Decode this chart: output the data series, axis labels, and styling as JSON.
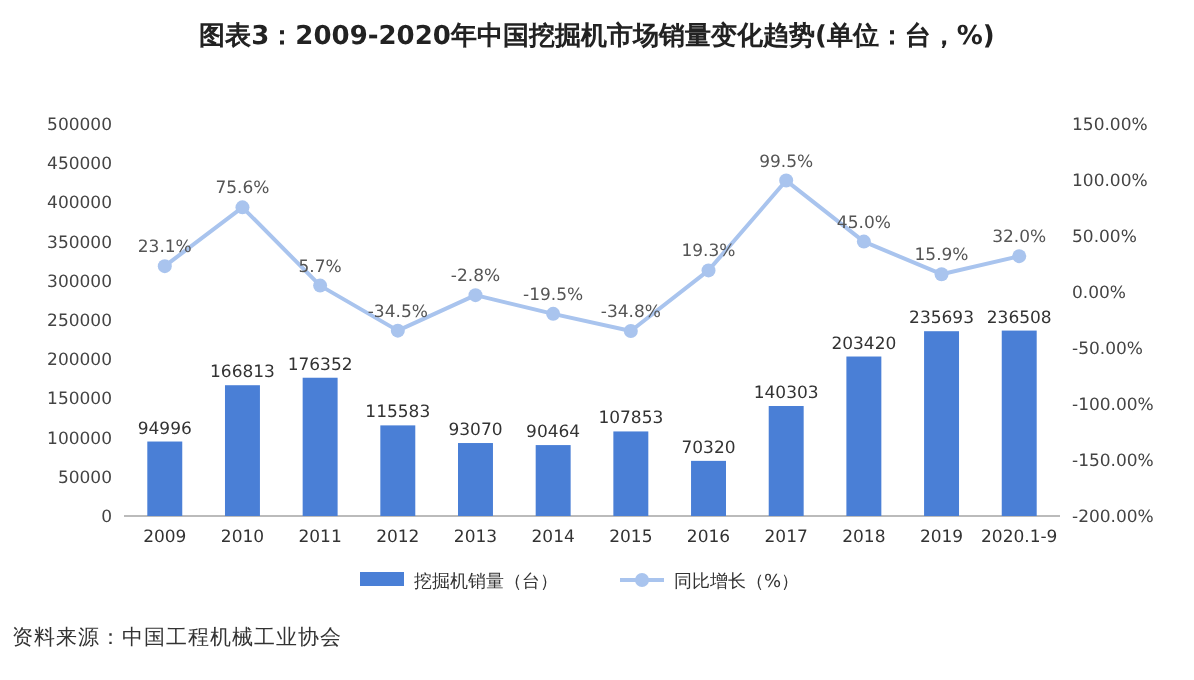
{
  "chart_data": {
    "type": "bar",
    "title": "图表3：2009-2020年中国挖掘机市场销量变化趋势(单位：台，%)",
    "categories": [
      "2009",
      "2010",
      "2011",
      "2012",
      "2013",
      "2014",
      "2015",
      "2016",
      "2017",
      "2018",
      "2019",
      "2020.1-9"
    ],
    "series": [
      {
        "name": "挖掘机销量（台）",
        "color": "#4a7fd6",
        "values": [
          94996,
          166813,
          176352,
          115583,
          93070,
          90464,
          107853,
          70320,
          140303,
          203420,
          235693,
          236508
        ],
        "value_labels": [
          "94996",
          "166813",
          "176352",
          "115583",
          "93070",
          "90464",
          "107853",
          "70320",
          "140303",
          "203420",
          "235693",
          "236508"
        ]
      },
      {
        "name": "同比增长（%）",
        "type": "line",
        "axis": "y2",
        "color": "#a9c4ee",
        "marker": "circle",
        "values": [
          23.1,
          75.6,
          5.7,
          -34.5,
          -2.8,
          -19.5,
          -34.8,
          19.3,
          99.5,
          45.0,
          15.9,
          32.0
        ],
        "value_labels": [
          "23.1%",
          "75.6%",
          "5.7%",
          "-34.5%",
          "-2.8%",
          "-19.5%",
          "-34.8%",
          "19.3%",
          "99.5%",
          "45.0%",
          "15.9%",
          "32.0%"
        ]
      }
    ],
    "ylim": [
      0,
      500000
    ],
    "yticks": [
      0,
      50000,
      100000,
      150000,
      200000,
      250000,
      300000,
      350000,
      400000,
      450000,
      500000
    ],
    "y2lim": [
      -200,
      150
    ],
    "y2ticks": [
      {
        "value": -200,
        "label": "-200.00%"
      },
      {
        "value": -150,
        "label": "-150.00%"
      },
      {
        "value": -100,
        "label": "-100.00%"
      },
      {
        "value": -50,
        "label": "-50.00%"
      },
      {
        "value": 0,
        "label": "0.00%"
      },
      {
        "value": 50,
        "label": "50.00%"
      },
      {
        "value": 100,
        "label": "100.00%"
      },
      {
        "value": 150,
        "label": "150.00%"
      }
    ],
    "legend": "bottom",
    "annotations": [
      "资料来源：中国工程机械工业协会"
    ]
  }
}
